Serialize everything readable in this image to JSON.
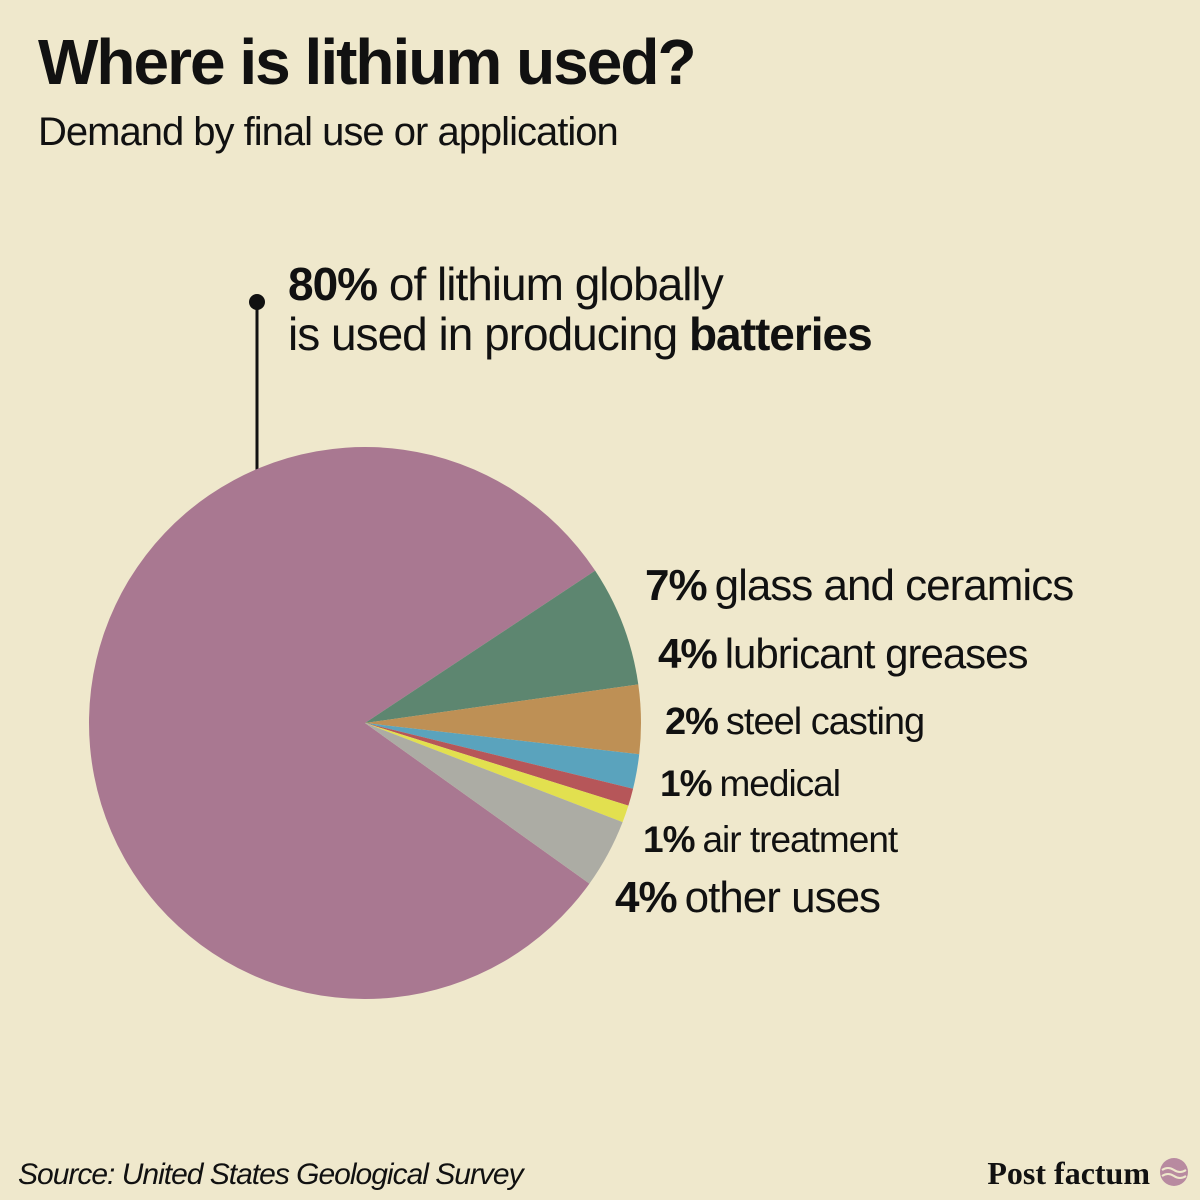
{
  "chart_data": {
    "type": "pie",
    "title": "Where is lithium used?",
    "subtitle": "Demand by final use or application",
    "categories": [
      "batteries",
      "glass and ceramics",
      "lubricant greases",
      "steel casting",
      "medical",
      "air treatment",
      "other uses"
    ],
    "values": [
      80,
      7,
      4,
      2,
      1,
      1,
      4
    ],
    "value_labels": [
      "80%",
      "7%",
      "4%",
      "2%",
      "1%",
      "1%",
      "4%"
    ],
    "colors": [
      "#a97891",
      "#5d8670",
      "#be9055",
      "#5aa3bd",
      "#b65659",
      "#e2e04f",
      "#acaca4"
    ],
    "annotation_lines": [
      "of lithium globally",
      "is used in producing"
    ],
    "source": "Source: United States Geological Survey",
    "brand": "Post factum"
  }
}
